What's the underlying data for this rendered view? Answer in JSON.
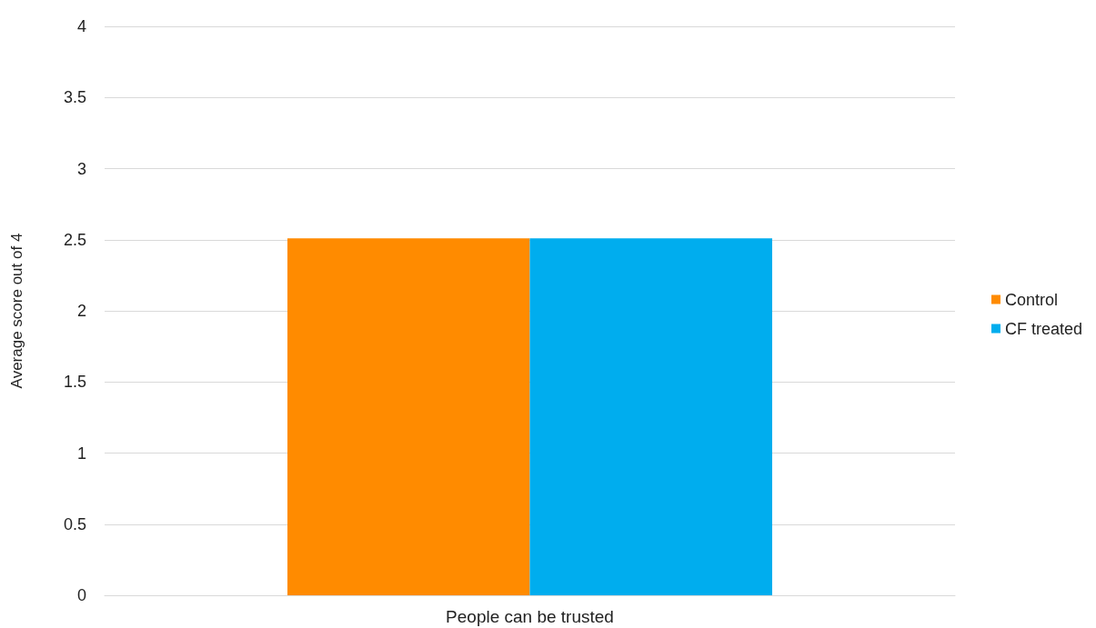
{
  "chart_data": {
    "type": "bar",
    "ylabel": "Average score out of 4",
    "categories": [
      "People can be trusted"
    ],
    "series": [
      {
        "name": "Control",
        "color": "#ff8b00",
        "values": [
          2.51
        ]
      },
      {
        "name": "CF treated",
        "color": "#00adee",
        "values": [
          2.51
        ]
      }
    ],
    "ylim": [
      0,
      4
    ],
    "yticks": [
      0,
      0.5,
      1,
      1.5,
      2,
      2.5,
      3,
      3.5,
      4
    ],
    "grid": "y",
    "legend": "right"
  }
}
